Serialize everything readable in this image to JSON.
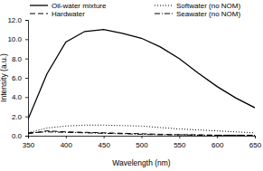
{
  "chart_data": {
    "type": "line",
    "x_label": "Wavelength (nm)",
    "y_label": "Intensity (a.u.)",
    "x": [
      350,
      375,
      400,
      425,
      450,
      475,
      500,
      525,
      550,
      575,
      600,
      625,
      650
    ],
    "series": [
      {
        "name": "Oil-water mixture",
        "color": "#000000",
        "line_style": "solid",
        "values": [
          1.7,
          6.4,
          9.7,
          10.8,
          11.0,
          10.6,
          10.1,
          9.2,
          8.0,
          6.5,
          5.1,
          3.9,
          2.9
        ]
      },
      {
        "name": "Softwater (no NOM)",
        "color": "#000000",
        "line_style": "dotted",
        "values": [
          0.3,
          0.8,
          1.0,
          1.1,
          1.1,
          1.05,
          1.0,
          0.85,
          0.7,
          0.6,
          0.5,
          0.4,
          0.3
        ]
      },
      {
        "name": "Hardwater",
        "color": "#000000",
        "line_style": "dashed",
        "values": [
          0.2,
          0.5,
          0.4,
          0.35,
          0.3,
          0.25,
          0.2,
          0.15,
          0.1,
          0.1,
          0.05,
          0.05,
          0.05
        ]
      },
      {
        "name": "Seawater (no NOM)",
        "color": "#000000",
        "line_style": "dashdot",
        "values": [
          0.3,
          0.4,
          0.35,
          0.3,
          0.25,
          0.2,
          0.15,
          0.1,
          0.1,
          0.05,
          0.05,
          0.05,
          0.05
        ]
      }
    ],
    "xlim": [
      350,
      650
    ],
    "xticks": [
      350,
      400,
      450,
      500,
      550,
      600,
      650
    ],
    "ylim": [
      0,
      12
    ],
    "yticks": [
      {
        "value": 0,
        "label": "0.0"
      },
      {
        "value": 2,
        "label": "2.0"
      },
      {
        "value": 4,
        "label": "4.0"
      },
      {
        "value": 6,
        "label": "6.0"
      },
      {
        "value": 8,
        "label": "8.0"
      },
      {
        "value": 10,
        "label": "10.0"
      },
      {
        "value": 12,
        "label": "12.0"
      }
    ],
    "grid": false,
    "legend": "top"
  }
}
